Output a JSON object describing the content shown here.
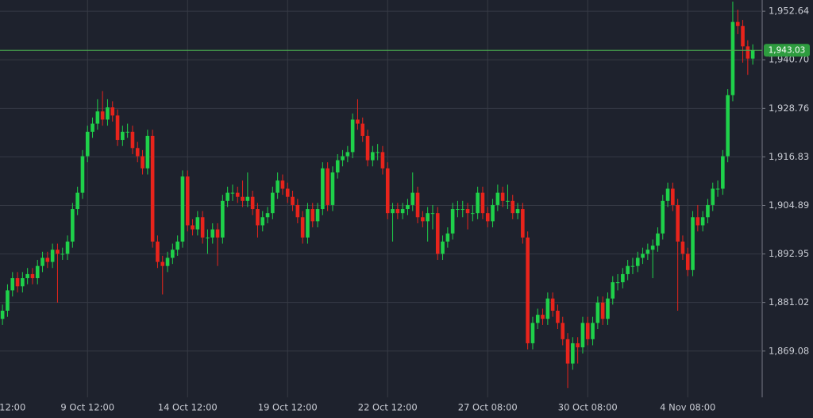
{
  "chart_data": {
    "type": "candlestick",
    "categories": [
      null,
      null,
      "12:00",
      null,
      null,
      null,
      null,
      null,
      null,
      null,
      null,
      null,
      null,
      null,
      null,
      null,
      null,
      "9 Oct 12:00",
      null,
      null,
      null,
      null,
      null,
      null,
      null,
      null,
      null,
      null,
      null,
      null,
      null,
      null,
      null,
      null,
      null,
      null,
      null,
      "14 Oct 12:00",
      null,
      null,
      null,
      null,
      null,
      null,
      null,
      null,
      null,
      null,
      null,
      null,
      null,
      null,
      null,
      null,
      null,
      null,
      null,
      "19 Oct 12:00",
      null,
      null,
      null,
      null,
      null,
      null,
      null,
      null,
      null,
      null,
      null,
      null,
      null,
      null,
      null,
      null,
      null,
      null,
      null,
      "22 Oct 12:00",
      null,
      null,
      null,
      null,
      null,
      null,
      null,
      null,
      null,
      null,
      null,
      null,
      null,
      null,
      null,
      null,
      null,
      null,
      null,
      "27 Oct 08:00",
      null,
      null,
      null,
      null,
      null,
      null,
      null,
      null,
      null,
      null,
      null,
      null,
      null,
      null,
      null,
      null,
      null,
      null,
      null,
      "30 Oct 08:00",
      null,
      null,
      null,
      null,
      null,
      null,
      null,
      null,
      null,
      null,
      null,
      null,
      null,
      null,
      null,
      null,
      null,
      null,
      null,
      "4 Nov 08:00",
      null,
      null,
      null,
      null,
      null,
      null,
      null,
      null,
      null,
      null,
      null,
      null,
      null
    ],
    "open": [
      1877,
      1879,
      1884,
      1887,
      1885,
      1887,
      1888,
      1887,
      1890,
      1892,
      1891,
      1894,
      1893,
      1893,
      1896,
      1904,
      1908,
      1917,
      1923,
      1925,
      1928,
      1926,
      1929,
      1927,
      1921,
      1923,
      1923,
      1919,
      1917,
      1914,
      1922,
      1896,
      1891,
      1890,
      1892,
      1894,
      1896,
      1912,
      1900,
      1899,
      1902,
      1897,
      1897,
      1899,
      1897,
      1906,
      1908,
      1908,
      1907,
      1906,
      1907,
      1904,
      1900,
      1902,
      1903,
      1908,
      1911,
      1909,
      1907,
      1905,
      1902,
      1897,
      1904,
      1901,
      1904,
      1914,
      1905,
      1913,
      1916,
      1917,
      1918,
      1926,
      1925,
      1922,
      1916,
      1918,
      1918,
      1914,
      1903,
      1904,
      1903,
      1904,
      1905,
      1908,
      1902,
      1901,
      1903,
      1903,
      1893,
      1896,
      1898,
      1904,
      1904,
      1904,
      1903,
      1903,
      1908,
      1903,
      1901,
      1905,
      1908,
      1906,
      1906,
      1903,
      1904,
      1897,
      1871,
      1876,
      1878,
      1877,
      1882,
      1879,
      1876,
      1872,
      1866,
      1871,
      1870,
      1876,
      1872,
      1876,
      1881,
      1877,
      1882,
      1886,
      1886,
      1888,
      1890,
      1890,
      1892,
      1893,
      1894,
      1895,
      1898,
      1906,
      1909,
      1905,
      1896,
      1893,
      1889,
      1902,
      1900,
      1902,
      1905,
      1909,
      1909,
      1917,
      1932,
      1950,
      1949,
      1944,
      1941
    ],
    "high": [
      1880.5,
      1885.5,
      1888.5,
      1888.5,
      1888.5,
      1889.5,
      1889.5,
      1891.5,
      1893.5,
      1893.5,
      1895.5,
      1895.5,
      1894.5,
      1897.5,
      1905.5,
      1909.5,
      1918.5,
      1924.5,
      1926.5,
      1931,
      1933,
      1931,
      1930.5,
      1928.5,
      1924.5,
      1925,
      1924.5,
      1920.5,
      1918.5,
      1923.5,
      1923.5,
      1897.5,
      1892.5,
      1893.5,
      1895.5,
      1897.5,
      1913.5,
      1913.5,
      1901.5,
      1903.5,
      1903.5,
      1899,
      1900.5,
      1900.5,
      1907.5,
      1909.5,
      1910,
      1909.5,
      1911,
      1913,
      1908.5,
      1905.5,
      1903.5,
      1904.5,
      1909.5,
      1913,
      1912.5,
      1910.5,
      1908.5,
      1906.5,
      1903.5,
      1905.5,
      1905.5,
      1905.5,
      1915.5,
      1915.5,
      1914.5,
      1917.5,
      1918.5,
      1919.5,
      1927.5,
      1931,
      1926.5,
      1923.5,
      1919.5,
      1920,
      1919.5,
      1915.5,
      1905.5,
      1905.5,
      1905.5,
      1906.5,
      1913,
      1909.5,
      1903.5,
      1904.5,
      1905,
      1904.5,
      1897.5,
      1899.5,
      1905.5,
      1906,
      1906,
      1905.5,
      1905,
      1909.5,
      1909.5,
      1904.5,
      1906.5,
      1910,
      1909.5,
      1910,
      1907.5,
      1905.5,
      1905.5,
      1898.5,
      1877.5,
      1879.5,
      1879.5,
      1883.5,
      1883.5,
      1880.5,
      1877.5,
      1873.5,
      1872.5,
      1872.5,
      1877.5,
      1877.5,
      1877.5,
      1882.5,
      1882.5,
      1883.5,
      1887.5,
      1888,
      1889.5,
      1891.5,
      1892,
      1893.5,
      1894.5,
      1895.5,
      1896.5,
      1899.5,
      1907.5,
      1910.5,
      1910.5,
      1906.5,
      1897.5,
      1894.5,
      1903.5,
      1905,
      1903.5,
      1906.5,
      1910.5,
      1911,
      1918.5,
      1933.5,
      1955,
      1953,
      1950.5,
      1945.5,
      1944.5
    ],
    "low": [
      1875.5,
      1877.5,
      1882.5,
      1883.5,
      1883.5,
      1885.5,
      1885.5,
      1885.5,
      1888.5,
      1889.5,
      1889.5,
      1881,
      1891.5,
      1891.5,
      1894.5,
      1902.5,
      1906.5,
      1915.5,
      1921.5,
      1923.5,
      1924.5,
      1924.5,
      1925.5,
      1919.5,
      1919.5,
      1921.5,
      1917.5,
      1915.5,
      1912.5,
      1912.5,
      1894.5,
      1889.5,
      1883,
      1888.5,
      1890.5,
      1892.5,
      1894.5,
      1898.5,
      1897.5,
      1897.5,
      1895.5,
      1893,
      1895.5,
      1890,
      1895.5,
      1904.5,
      1906,
      1905.5,
      1904.5,
      1904.5,
      1902.5,
      1897,
      1898.5,
      1900.5,
      1901.5,
      1906.5,
      1907.5,
      1905.5,
      1903.5,
      1900.5,
      1895.5,
      1895.5,
      1899.5,
      1899.5,
      1902.5,
      1903.5,
      1903.5,
      1911.5,
      1914.5,
      1915.5,
      1916.5,
      1923.5,
      1920.5,
      1914.5,
      1914.5,
      1916,
      1912.5,
      1901.5,
      1896,
      1901.5,
      1901.5,
      1902.5,
      1903.5,
      1900.5,
      1899.5,
      1896,
      1899,
      1891.5,
      1891.5,
      1894.5,
      1896.5,
      1902,
      1902,
      1899,
      1901,
      1901.5,
      1901.5,
      1899.5,
      1899.5,
      1903.5,
      1904.5,
      1904,
      1901.5,
      1901.5,
      1895.5,
      1869.5,
      1869.5,
      1874.5,
      1875.5,
      1875.5,
      1877.5,
      1874.5,
      1870.5,
      1860,
      1864.5,
      1866,
      1868.5,
      1870.5,
      1870.5,
      1874.5,
      1875.5,
      1875.5,
      1880.5,
      1884,
      1884.5,
      1886.5,
      1888,
      1888.5,
      1890.5,
      1891.5,
      1887,
      1893.5,
      1896.5,
      1904.5,
      1903.5,
      1879,
      1891.5,
      1887.5,
      1887.5,
      1898.5,
      1898.5,
      1900.5,
      1903.5,
      1907,
      1907.5,
      1915.5,
      1930.5,
      1947,
      1940,
      1937,
      1939.5
    ],
    "close": [
      1879,
      1884,
      1887,
      1885,
      1887,
      1888,
      1887,
      1890,
      1892,
      1891,
      1894,
      1893,
      1893,
      1896,
      1904,
      1908,
      1917,
      1923,
      1925,
      1928,
      1926,
      1929,
      1927,
      1921,
      1923,
      1923,
      1919,
      1917,
      1914,
      1922,
      1896,
      1891,
      1890,
      1892,
      1894,
      1896,
      1912,
      1900,
      1899,
      1902,
      1897,
      1897,
      1899,
      1897,
      1906,
      1908,
      1908,
      1907,
      1906,
      1907,
      1904,
      1900,
      1902,
      1903,
      1908,
      1911,
      1909,
      1907,
      1905,
      1902,
      1897,
      1904,
      1901,
      1904,
      1914,
      1905,
      1913,
      1916,
      1917,
      1918,
      1926,
      1925,
      1922,
      1916,
      1918,
      1918,
      1914,
      1903,
      1904,
      1903,
      1904,
      1905,
      1908,
      1902,
      1901,
      1903,
      1903,
      1893,
      1896,
      1898,
      1904,
      1904,
      1904,
      1903,
      1903,
      1908,
      1903,
      1901,
      1905,
      1908,
      1906,
      1906,
      1903,
      1904,
      1897,
      1871,
      1876,
      1878,
      1877,
      1882,
      1879,
      1876,
      1872,
      1866,
      1871,
      1870,
      1876,
      1872,
      1876,
      1881,
      1877,
      1882,
      1886,
      1886,
      1888,
      1890,
      1890,
      1892,
      1893,
      1894,
      1895,
      1898,
      1906,
      1909,
      1905,
      1896,
      1893,
      1889,
      1902,
      1900,
      1902,
      1905,
      1909,
      1909,
      1917,
      1932,
      1950,
      1949,
      1944,
      1941,
      1943.03
    ],
    "up_color": "#1fd14a",
    "down_color": "#e8241c",
    "ylim": [
      1857.7,
      1955.4
    ],
    "yticks": [
      {
        "value": 1869.08,
        "label": "1,869.08"
      },
      {
        "value": 1881.02,
        "label": "1,881.02"
      },
      {
        "value": 1892.95,
        "label": "1,892.95"
      },
      {
        "value": 1904.89,
        "label": "1,904.89"
      },
      {
        "value": 1916.83,
        "label": "1,916.83"
      },
      {
        "value": 1928.76,
        "label": "1,928.76"
      },
      {
        "value": 1940.7,
        "label": "1,940.70"
      },
      {
        "value": 1952.64,
        "label": "1,952.64"
      }
    ],
    "price_line": {
      "value": 1943.03,
      "label": "1,943.03"
    },
    "grid": true
  }
}
